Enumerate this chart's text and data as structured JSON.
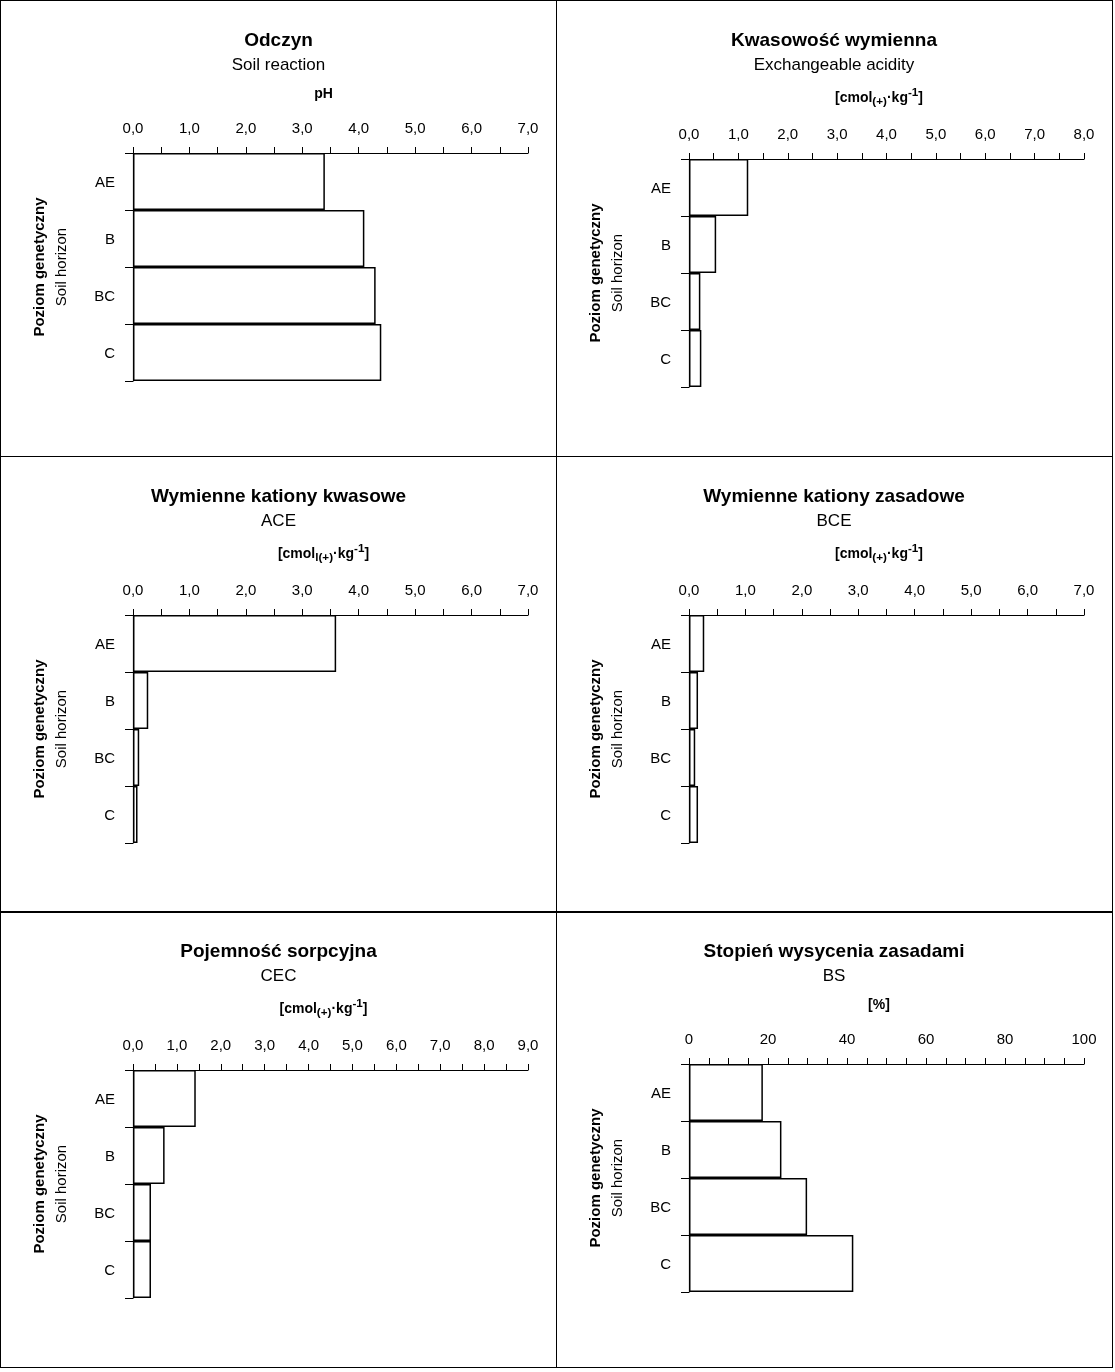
{
  "chart_data": [
    {
      "type": "bar",
      "orientation": "horizontal",
      "title": "Odczyn",
      "subtitle": "Soil reaction",
      "xlabel": "pH",
      "ylabel": "Poziom genetyczny\nSoil horizon",
      "categories": [
        "AE",
        "B",
        "BC",
        "C"
      ],
      "values": [
        3.4,
        4.1,
        4.3,
        4.4
      ],
      "color": "#ffffff",
      "xlim": [
        0,
        7
      ],
      "xticks": [
        {
          "value": 0,
          "label": "0,0"
        },
        {
          "value": 0.5,
          "label": null
        },
        {
          "value": 1,
          "label": "1,0"
        },
        {
          "value": 1.5,
          "label": null
        },
        {
          "value": 2,
          "label": "2,0"
        },
        {
          "value": 2.5,
          "label": null
        },
        {
          "value": 3,
          "label": "3,0"
        },
        {
          "value": 3.5,
          "label": null
        },
        {
          "value": 4,
          "label": "4,0"
        },
        {
          "value": 4.5,
          "label": null
        },
        {
          "value": 5,
          "label": "5,0"
        },
        {
          "value": 5.5,
          "label": null
        },
        {
          "value": 6,
          "label": "6,0"
        },
        {
          "value": 6.5,
          "label": null
        },
        {
          "value": 7,
          "label": "7,0"
        }
      ]
    },
    {
      "type": "bar",
      "orientation": "horizontal",
      "title": "Kwasowość wymienna",
      "subtitle": "Exchangeable acidity",
      "xlabel": "[cmol$_{(+)}$·kg$^{-1}$]",
      "ylabel": "Poziom genetyczny\nSoil horizon",
      "categories": [
        "AE",
        "B",
        "BC",
        "C"
      ],
      "values": [
        1.2,
        0.55,
        0.23,
        0.25
      ],
      "color": "#ffffff",
      "xlim": [
        0,
        8
      ],
      "xticks": [
        {
          "value": 0,
          "label": "0,0"
        },
        {
          "value": 0.5,
          "label": null
        },
        {
          "value": 1,
          "label": "1,0"
        },
        {
          "value": 1.5,
          "label": null
        },
        {
          "value": 2,
          "label": "2,0"
        },
        {
          "value": 2.5,
          "label": null
        },
        {
          "value": 3,
          "label": "3,0"
        },
        {
          "value": 3.5,
          "label": null
        },
        {
          "value": 4,
          "label": "4,0"
        },
        {
          "value": 4.5,
          "label": null
        },
        {
          "value": 5,
          "label": "5,0"
        },
        {
          "value": 5.5,
          "label": null
        },
        {
          "value": 6,
          "label": "6,0"
        },
        {
          "value": 6.5,
          "label": null
        },
        {
          "value": 7,
          "label": "7,0"
        },
        {
          "value": 7.5,
          "label": null
        },
        {
          "value": 8,
          "label": "8,0"
        }
      ]
    },
    {
      "type": "bar",
      "orientation": "horizontal",
      "title": "Wymienne kationy kwasowe",
      "subtitle": "ACE",
      "xlabel": "[cmol$_{l(+)}$·kg$^{-1}$]",
      "ylabel": "Poziom genetyczny\nSoil horizon",
      "categories": [
        "AE",
        "B",
        "BC",
        "C"
      ],
      "values": [
        3.6,
        0.27,
        0.11,
        0.08
      ],
      "color": "#ffffff",
      "xlim": [
        0,
        7
      ],
      "xticks": [
        {
          "value": 0,
          "label": "0,0"
        },
        {
          "value": 0.5,
          "label": null
        },
        {
          "value": 1,
          "label": "1,0"
        },
        {
          "value": 1.5,
          "label": null
        },
        {
          "value": 2,
          "label": "2,0"
        },
        {
          "value": 2.5,
          "label": null
        },
        {
          "value": 3,
          "label": "3,0"
        },
        {
          "value": 3.5,
          "label": null
        },
        {
          "value": 4,
          "label": "4,0"
        },
        {
          "value": 4.5,
          "label": null
        },
        {
          "value": 5,
          "label": "5,0"
        },
        {
          "value": 5.5,
          "label": null
        },
        {
          "value": 6,
          "label": "6,0"
        },
        {
          "value": 6.5,
          "label": null
        },
        {
          "value": 7,
          "label": "7,0"
        }
      ]
    },
    {
      "type": "bar",
      "orientation": "horizontal",
      "title": "Wymienne kationy zasadowe",
      "subtitle": "BCE",
      "xlabel": "[cmol$_{(+)}$·kg$^{-1}$]",
      "ylabel": "Poziom genetyczny\nSoil horizon",
      "categories": [
        "AE",
        "B",
        "BC",
        "C"
      ],
      "values": [
        0.27,
        0.16,
        0.11,
        0.16
      ],
      "color": "#ffffff",
      "xlim": [
        0,
        7
      ],
      "xticks": [
        {
          "value": 0,
          "label": "0,0"
        },
        {
          "value": 0.5,
          "label": null
        },
        {
          "value": 1,
          "label": "1,0"
        },
        {
          "value": 1.5,
          "label": null
        },
        {
          "value": 2,
          "label": "2,0"
        },
        {
          "value": 2.5,
          "label": null
        },
        {
          "value": 3,
          "label": "3,0"
        },
        {
          "value": 3.5,
          "label": null
        },
        {
          "value": 4,
          "label": "4,0"
        },
        {
          "value": 4.5,
          "label": null
        },
        {
          "value": 5,
          "label": "5,0"
        },
        {
          "value": 5.5,
          "label": null
        },
        {
          "value": 6,
          "label": "6,0"
        },
        {
          "value": 6.5,
          "label": null
        },
        {
          "value": 7,
          "label": "7,0"
        }
      ]
    },
    {
      "type": "bar",
      "orientation": "horizontal",
      "title": "Pojemność sorpcyjna",
      "subtitle": "CEC",
      "xlabel": "[cmol$_{(+)}$·kg$^{-1}$]",
      "ylabel": "Poziom genetyczny\nSoil horizon",
      "categories": [
        "AE",
        "B",
        "BC",
        "C"
      ],
      "values": [
        1.43,
        0.72,
        0.41,
        0.41
      ],
      "color": "#ffffff",
      "xlim": [
        0,
        9
      ],
      "xticks": [
        {
          "value": 0,
          "label": "0,0"
        },
        {
          "value": 0.5,
          "label": null
        },
        {
          "value": 1,
          "label": "1,0"
        },
        {
          "value": 1.5,
          "label": null
        },
        {
          "value": 2,
          "label": "2,0"
        },
        {
          "value": 2.5,
          "label": null
        },
        {
          "value": 3,
          "label": "3,0"
        },
        {
          "value": 3.5,
          "label": null
        },
        {
          "value": 4,
          "label": "4,0"
        },
        {
          "value": 4.5,
          "label": null
        },
        {
          "value": 5,
          "label": "5,0"
        },
        {
          "value": 5.5,
          "label": null
        },
        {
          "value": 6,
          "label": "6,0"
        },
        {
          "value": 6.5,
          "label": null
        },
        {
          "value": 7,
          "label": "7,0"
        },
        {
          "value": 7.5,
          "label": null
        },
        {
          "value": 8,
          "label": "8,0"
        },
        {
          "value": 8.5,
          "label": null
        },
        {
          "value": 9,
          "label": "9,0"
        }
      ]
    },
    {
      "type": "bar",
      "orientation": "horizontal",
      "title": "Stopień wysycenia zasadami",
      "subtitle": "BS",
      "xlabel": "[%]",
      "ylabel": "Poziom genetyczny\nSoil horizon",
      "categories": [
        "AE",
        "B",
        "BC",
        "C"
      ],
      "values": [
        18.7,
        23.4,
        29.9,
        41.6
      ],
      "color": "#ffffff",
      "xlim": [
        0,
        100
      ],
      "xticks": [
        0,
        {
          "value": 5,
          "label": null
        },
        {
          "value": 10,
          "label": null
        },
        {
          "value": 15,
          "label": null
        },
        20,
        {
          "value": 25,
          "label": null
        },
        {
          "value": 30,
          "label": null
        },
        {
          "value": 35,
          "label": null
        },
        40,
        {
          "value": 45,
          "label": null
        },
        {
          "value": 50,
          "label": null
        },
        {
          "value": 55,
          "label": null
        },
        60,
        {
          "value": 65,
          "label": null
        },
        {
          "value": 70,
          "label": null
        },
        {
          "value": 75,
          "label": null
        },
        80,
        {
          "value": 85,
          "label": null
        },
        {
          "value": 90,
          "label": null
        },
        {
          "value": 95,
          "label": null
        },
        100
      ]
    }
  ]
}
